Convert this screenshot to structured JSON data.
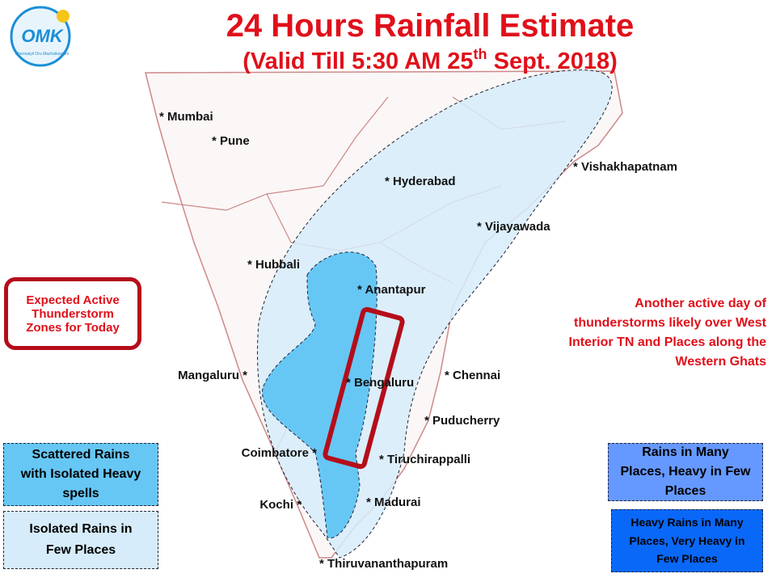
{
  "header": {
    "title": "24 Hours Rainfall Estimate",
    "subtitle": [
      "(Valid Till 5:30 AM 25",
      "th",
      " Sept. 2018)"
    ]
  },
  "logo": {
    "text": "OMK",
    "tagline": "Chennaiyil Oru Mazhaikaalam"
  },
  "cities": [
    "* Mumbai",
    "* Pune",
    "* Hyderabad",
    "* Vishakhapatnam",
    "* Vijayawada",
    "* Hubbali",
    "* Anantapur",
    "Mangaluru *",
    "* Bengaluru",
    "* Chennai",
    "* Puducherry",
    "Coimbatore *",
    "* Tiruchirappalli",
    "Kochi *",
    "* Madurai",
    "* Thiruvananthapuram"
  ],
  "callout": "Expected Active Thunderstorm Zones for Today",
  "annotation": "Another active day of thunderstorms likely over West Interior TN and Places along the Western Ghats",
  "legend": [
    "Scattered Rains with Isolated Heavy spells",
    "Isolated Rains in Few Places",
    "Rains in Many Places, Heavy in Few Places",
    "Heavy Rains in Many Places, Very Heavy in Few Places"
  ]
}
